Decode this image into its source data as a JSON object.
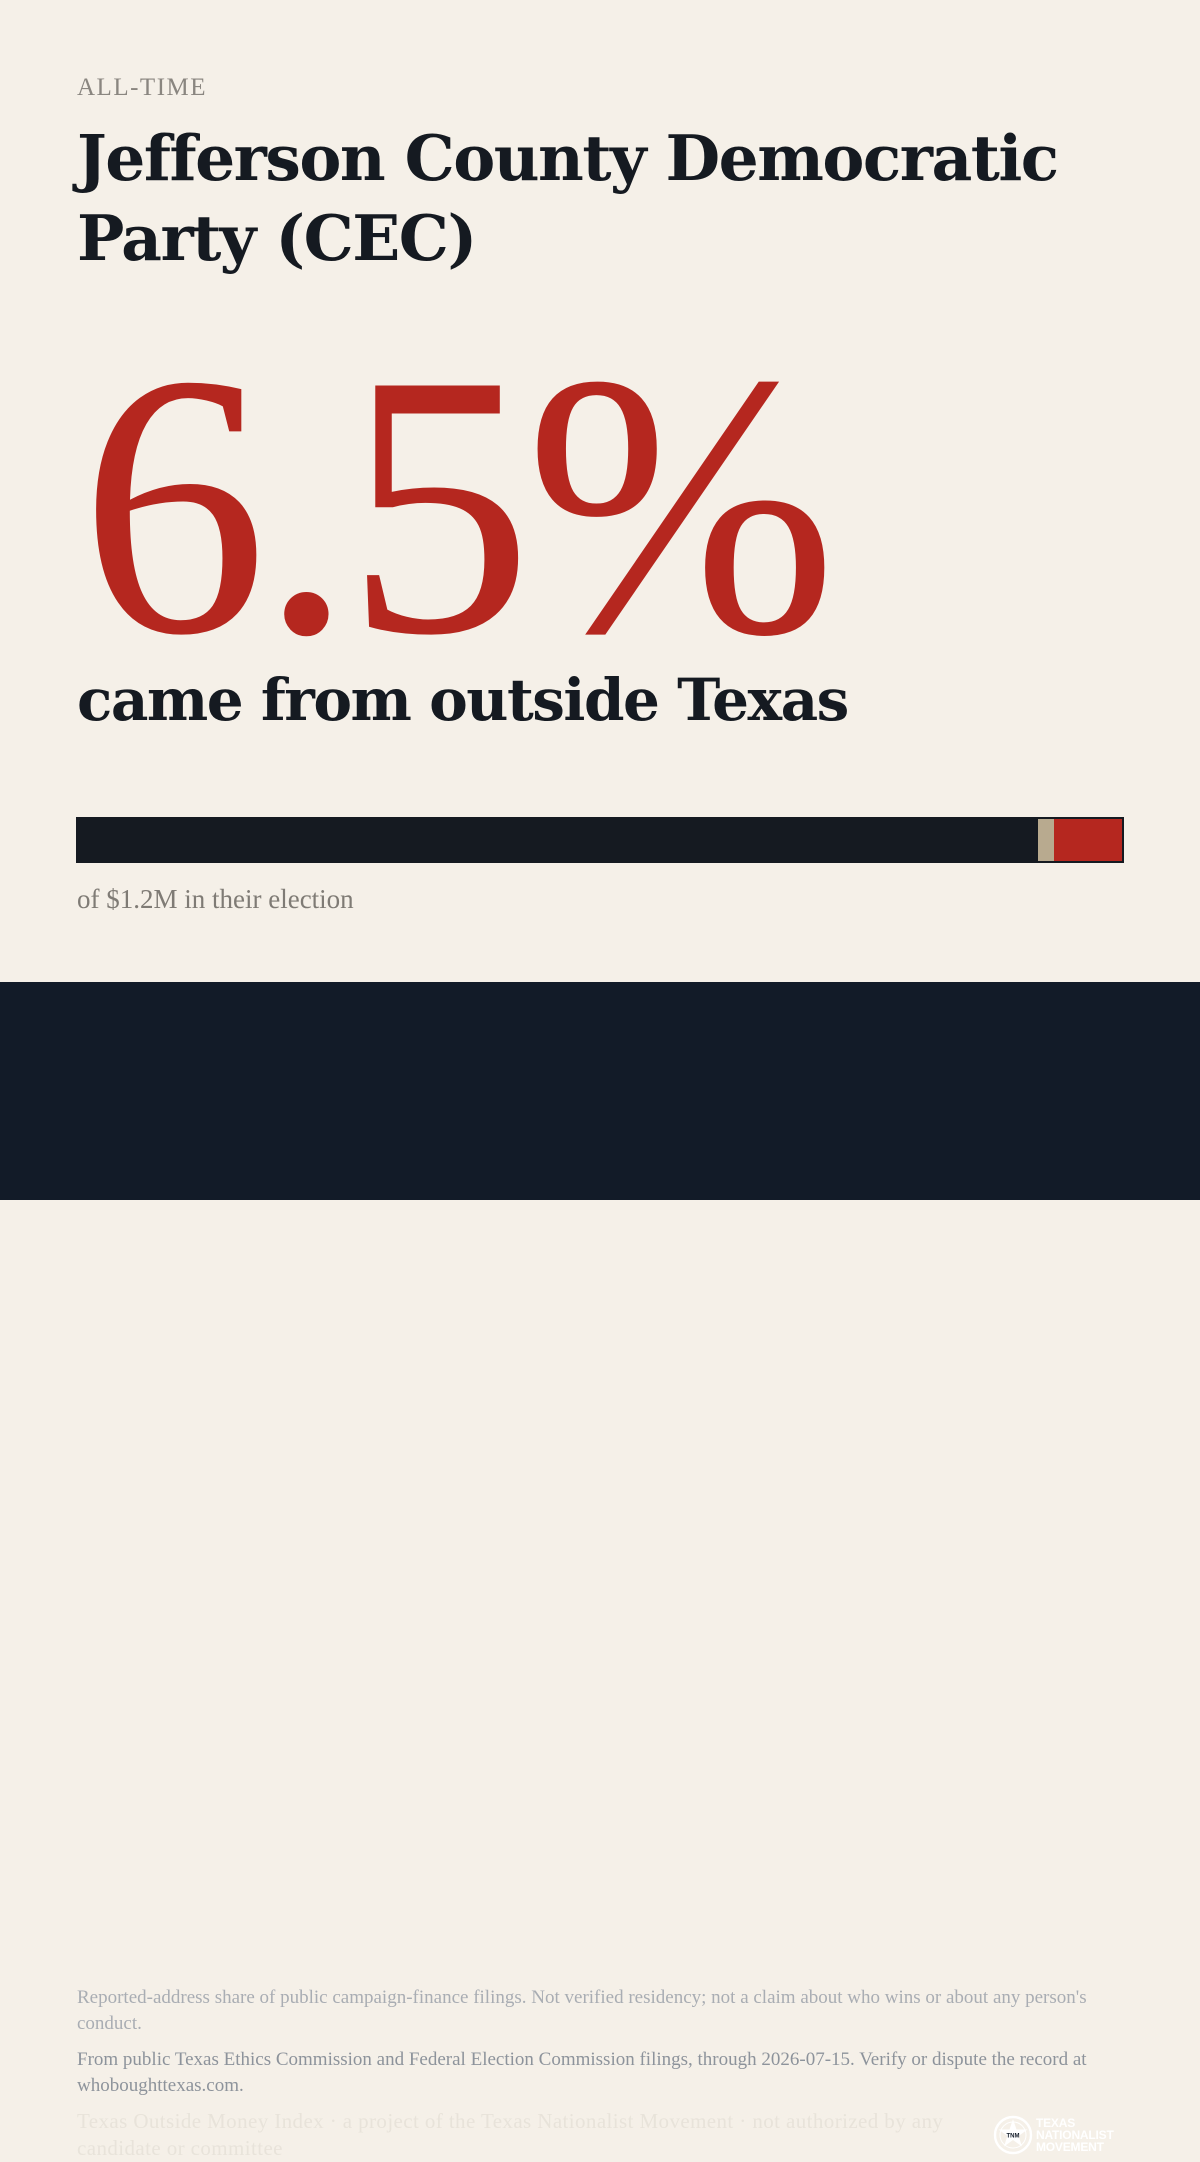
{
  "kicker": "ALL-TIME",
  "title": "Jefferson County Democratic Party (CEC)",
  "headline_percent": "6.5%",
  "headline_caption": "came from outside Texas",
  "share_bar": {
    "in_state_fraction": 0.92,
    "unknown_fraction": 0.015,
    "out_of_state_fraction": 0.065,
    "colors": {
      "in_state": "#151a21",
      "unknown": "#b8aa8f",
      "out_of_state": "#b5271f"
    }
  },
  "total_caption": "of $1.2M in their election",
  "footer": {
    "disclaimer": "Reported-address share of public campaign-finance filings. Not verified residency; not a claim about who wins or about any person's conduct.",
    "source": "From public Texas Ethics Commission and Federal Election Commission filings, through 2026-07-15. Verify or dispute the record at whoboughttexas.com.",
    "credit": "Texas Outside Money Index · a project of the Texas Nationalist Movement · not authorized by any candidate or committee",
    "logo": {
      "icon": "star-seal-icon",
      "line1": "TEXAS",
      "line2": "NATIONALIST",
      "line3": "MOVEMENT"
    }
  },
  "colors": {
    "background": "#f5f0e8",
    "accent": "#b5271f",
    "ink": "#151a21",
    "footer_background": "#121b28"
  }
}
